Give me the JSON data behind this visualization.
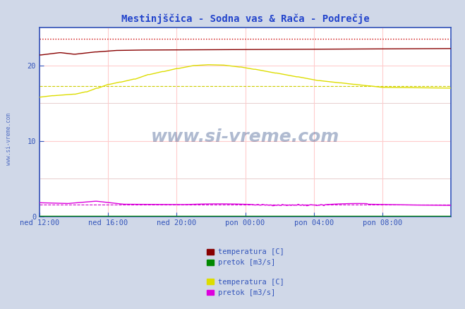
{
  "title": "Mestinjščica - Sodna vas & Rača - Podrečje",
  "title_color": "#2244cc",
  "background_color": "#d0d8e8",
  "plot_bg_color": "#ffffff",
  "xlim": [
    0,
    288
  ],
  "ylim": [
    0,
    25
  ],
  "yticks": [
    0,
    10,
    20
  ],
  "xtick_labels": [
    "ned 12:00",
    "ned 16:00",
    "ned 20:00",
    "pon 00:00",
    "pon 04:00",
    "pon 08:00"
  ],
  "xtick_positions": [
    0,
    48,
    96,
    144,
    192,
    240
  ],
  "grid_color_main": "#ffcccc",
  "grid_color_minor": "#ddbbbb",
  "color_temp1": "#880000",
  "color_flow1": "#008800",
  "color_temp2": "#dddd00",
  "color_flow2": "#dd00dd",
  "color_ref_dotted": "#cc0000",
  "color_ref_dash_y": "#cccc00",
  "color_ref_dash_m": "#cc00cc",
  "axis_color": "#3355bb",
  "tick_color": "#3355bb",
  "legend1_label1": "temperatura [C]",
  "legend1_label2": "pretok [m3/s]",
  "legend2_label1": "temperatura [C]",
  "legend2_label2": "pretok [m3/s]"
}
